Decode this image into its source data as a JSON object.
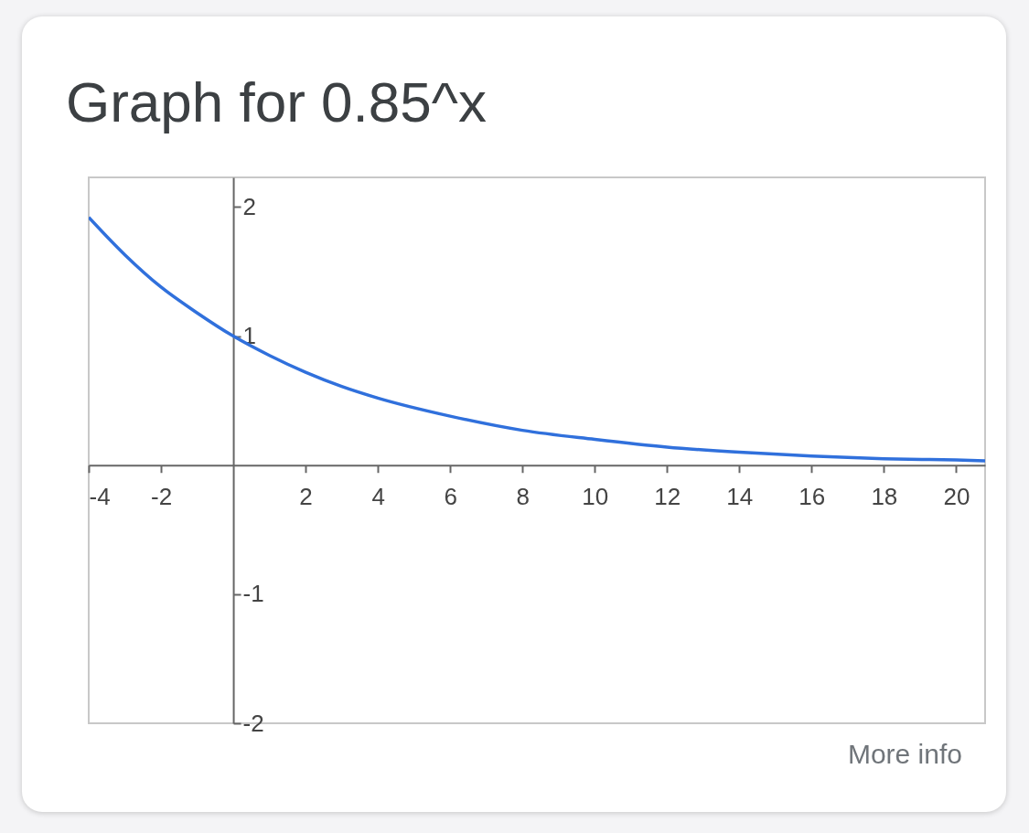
{
  "chart_data": {
    "type": "line",
    "title": "Graph for 0.85^x",
    "x": [
      -4,
      -3,
      -2,
      -1,
      0,
      1,
      2,
      3,
      4,
      6,
      8,
      10,
      12,
      14,
      16,
      18,
      20,
      20.8
    ],
    "series": [
      {
        "color": "#3070dc",
        "values": [
          1.92,
          1.63,
          1.38,
          1.18,
          1,
          0.85,
          0.72,
          0.61,
          0.52,
          0.38,
          0.27,
          0.2,
          0.14,
          0.1,
          0.07,
          0.05,
          0.04,
          0.034
        ]
      }
    ],
    "xlim": [
      -4,
      20.8
    ],
    "ylim": [
      -2.0,
      2.23
    ],
    "xticks": [
      -4,
      -2,
      2,
      4,
      6,
      8,
      10,
      12,
      14,
      16,
      18,
      20
    ],
    "yticks": [
      2,
      1,
      -1,
      -2
    ],
    "grid": false,
    "marker": "none",
    "line_style": "solid",
    "annotations": [
      "More info"
    ]
  }
}
